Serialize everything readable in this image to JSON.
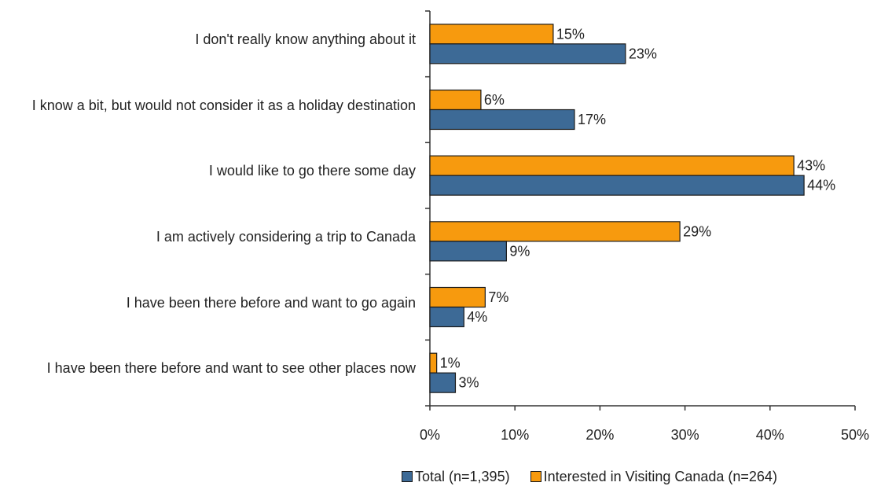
{
  "chart_data": {
    "type": "bar",
    "orientation": "horizontal",
    "categories": [
      "I don't really know anything about it",
      "I know a bit, but would not consider it as a holiday destination",
      "I would like to go there some day",
      "I am actively considering a trip to Canada",
      "I have been there before and want to go again",
      "I have been there before and want to see other places now"
    ],
    "series": [
      {
        "name": "Total (n=1,395)",
        "color": "#3d6a96",
        "values": [
          23,
          17,
          44,
          9,
          4,
          3
        ],
        "labels": [
          "23%",
          "17%",
          "44%",
          "9%",
          "4%",
          "3%"
        ]
      },
      {
        "name": "Interested in Visiting Canada (n=264)",
        "color": "#f79a0e",
        "values": [
          14.5,
          6,
          42.8,
          29.4,
          6.5,
          0.8
        ],
        "labels": [
          "15%",
          "6%",
          "43%",
          "29%",
          "7%",
          "1%"
        ]
      }
    ],
    "xlim": [
      0,
      50
    ],
    "xticks": [
      "0%",
      "10%",
      "20%",
      "30%",
      "40%",
      "50%"
    ],
    "xlabel": "",
    "ylabel": "",
    "grid": false,
    "legend_position": "bottom"
  }
}
